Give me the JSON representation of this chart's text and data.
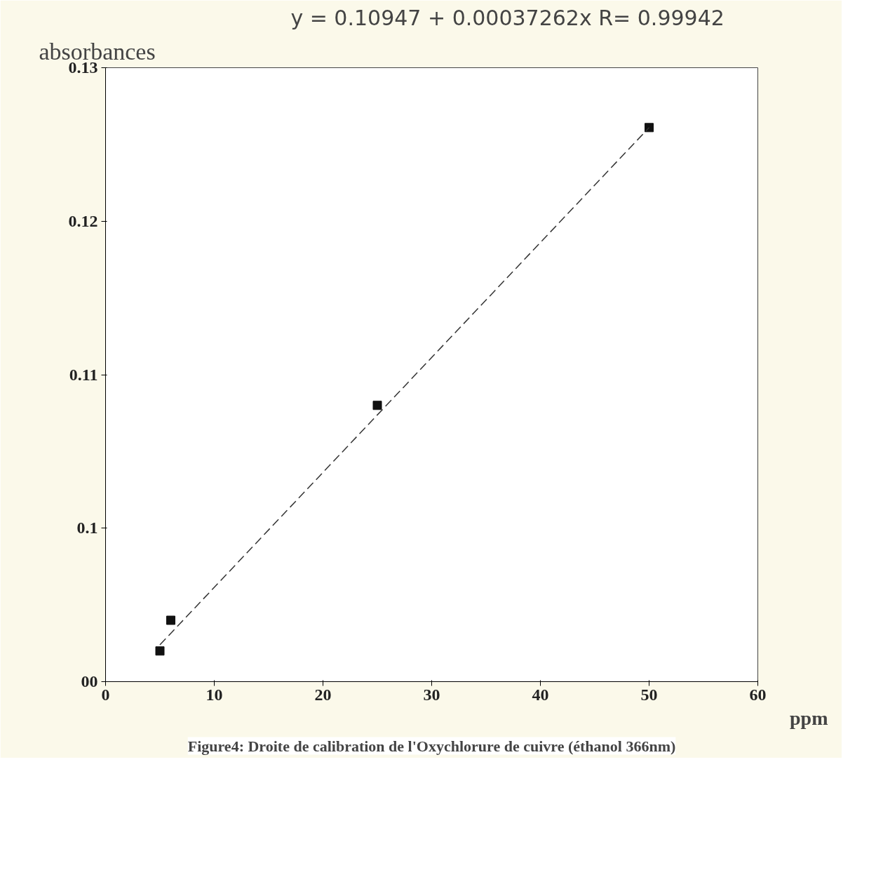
{
  "chart_data": {
    "type": "scatter",
    "title": "Figure4: Droite de calibration de l'Oxychlorure de cuivre (éthanol 366nm)",
    "xlabel": "ppm",
    "ylabel": "absorbances",
    "annotations": [
      "y = 0.10947 + 0.00037262x      R= 0.99942"
    ],
    "x": [
      5,
      6,
      25,
      50
    ],
    "series": [
      {
        "color": "#111111",
        "marker": "square",
        "values": [
          0.092,
          0.094,
          0.108,
          0.1261
        ]
      },
      {
        "type": "line",
        "color": "#333333",
        "line_style": "dashed",
        "marker": "none",
        "x": [
          5,
          50
        ],
        "values": [
          0.0924,
          0.1261
        ]
      }
    ],
    "xlim": [
      0,
      60
    ],
    "xticks": [
      0,
      10,
      20,
      30,
      40,
      50,
      60
    ],
    "ylim": [
      0.09,
      0.13
    ],
    "yticks": [
      {
        "value": 0.09,
        "label": "00"
      },
      0.1,
      0.11,
      0.12,
      0.13
    ],
    "grid": false
  }
}
